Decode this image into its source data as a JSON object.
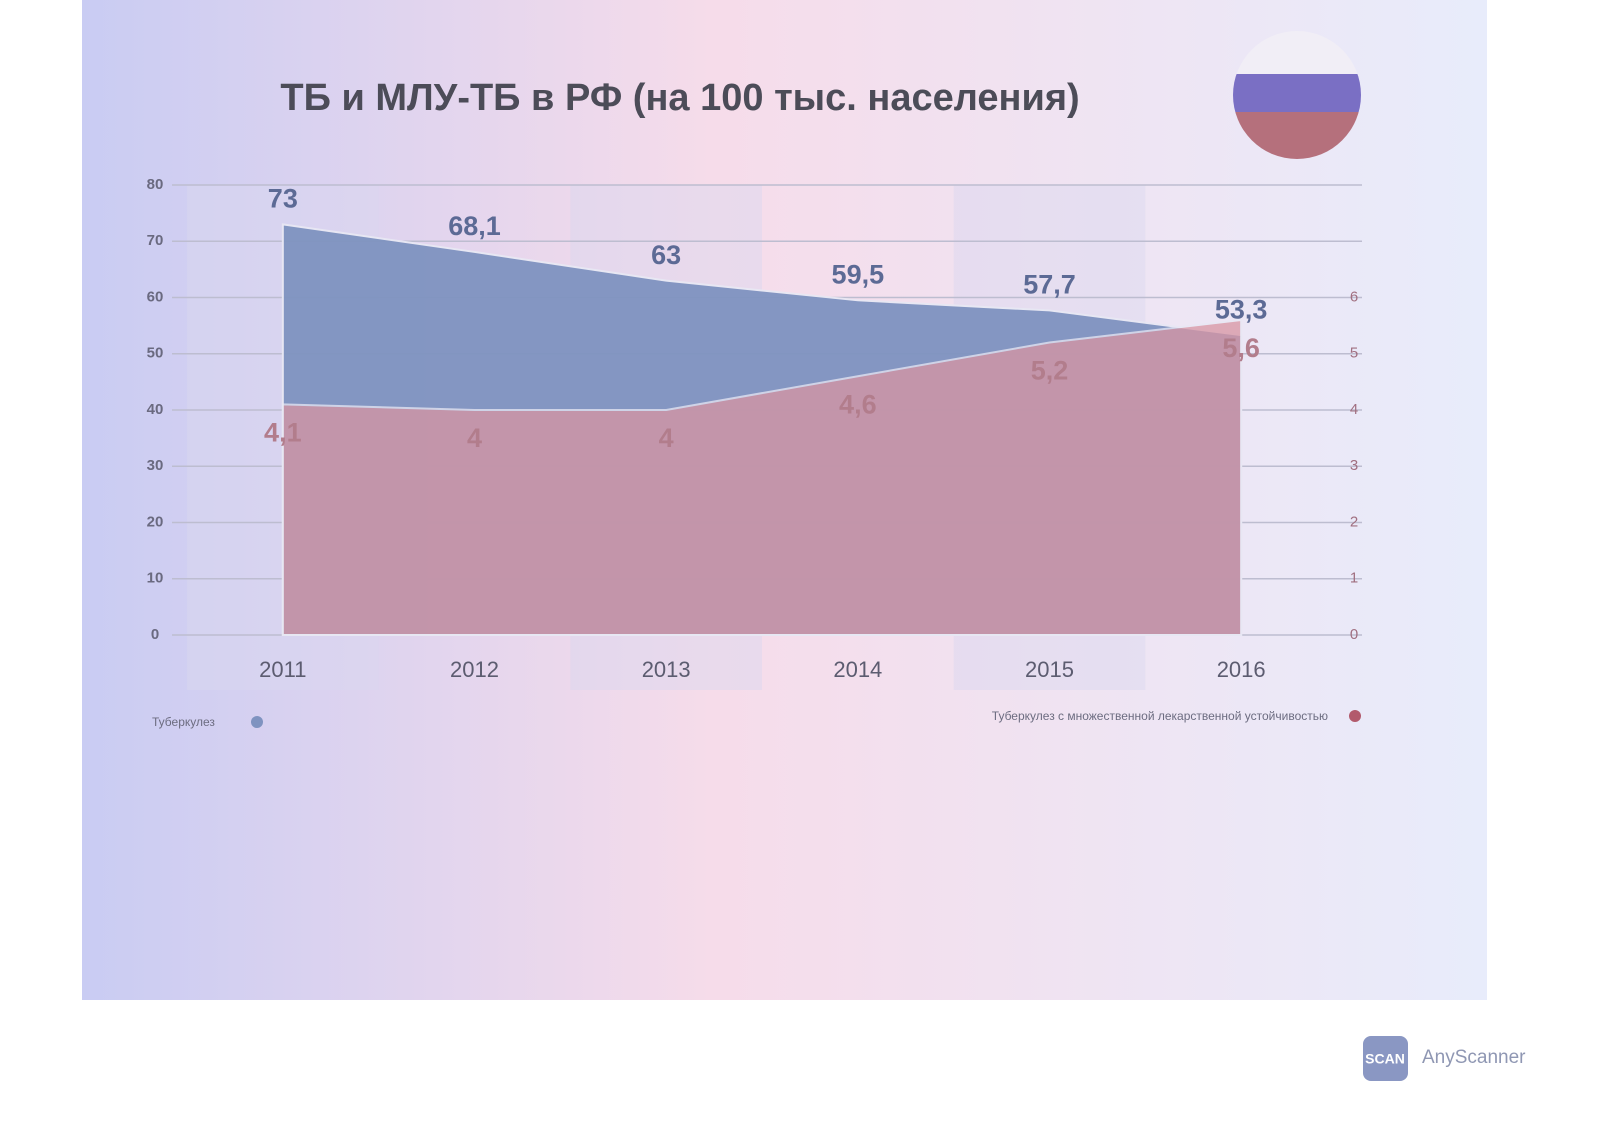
{
  "chart_data": {
    "type": "area",
    "title": "ТБ и МЛУ-ТБ в РФ (на 100 тыс. населения)",
    "categories": [
      "2011",
      "2012",
      "2013",
      "2014",
      "2015",
      "2016"
    ],
    "series": [
      {
        "name": "Туберкулез",
        "color": "#7f93c0",
        "values": [
          73,
          68.1,
          63,
          59.5,
          57.7,
          53.3
        ],
        "value_labels": [
          "73",
          "68,1",
          "63",
          "59,5",
          "57,7",
          "53,3"
        ]
      },
      {
        "name": "Туберкулез с множественной лекарственной устойчивостью",
        "color": "#d895a3",
        "axis": "y2",
        "values": [
          4.1,
          4,
          4,
          4.6,
          5.2,
          5.6
        ],
        "value_labels": [
          "4,1",
          "4",
          "4",
          "4,6",
          "5,2",
          "5,6"
        ]
      }
    ],
    "ylim": [
      0,
      80
    ],
    "yticks": [
      0,
      10,
      20,
      30,
      40,
      50,
      60,
      70,
      80
    ],
    "y2lim": [
      0,
      8
    ],
    "y2ticks": [
      0,
      1,
      2,
      3,
      4,
      5,
      6
    ],
    "grid": true,
    "legend": "bottom"
  },
  "watermark": {
    "icon": "SCAN",
    "text": "AnyScanner"
  }
}
